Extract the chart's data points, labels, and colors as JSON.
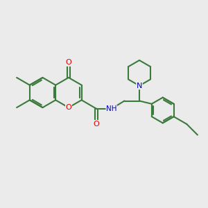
{
  "bg_color": "#ebebeb",
  "bond_color": "#3a7a3a",
  "bond_width": 1.5,
  "atom_colors": {
    "O": "#dd0000",
    "N": "#0000bb",
    "C": "#3a7a3a"
  },
  "font_size": 7.5,
  "figsize": [
    3.0,
    3.0
  ],
  "dpi": 100,
  "xlim": [
    0,
    10
  ],
  "ylim": [
    0,
    10
  ]
}
